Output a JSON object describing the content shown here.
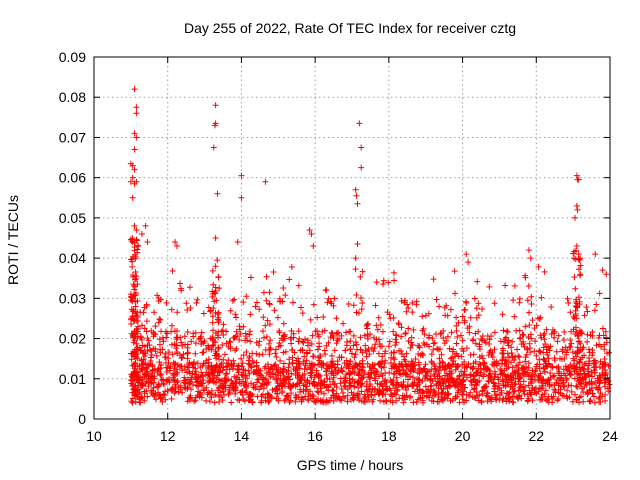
{
  "chart_data": {
    "type": "scatter",
    "title": "Day 255 of 2022, Rate Of TEC Index for receiver cztg",
    "xlabel": "GPS time / hours",
    "ylabel": "ROTI / TECUs",
    "xlim": [
      10,
      24
    ],
    "ylim": [
      0,
      0.09
    ],
    "xticks": [
      10,
      12,
      14,
      16,
      18,
      20,
      22,
      24
    ],
    "yticks": [
      0,
      0.01,
      0.02,
      0.03,
      0.04,
      0.05,
      0.06,
      0.07,
      0.08,
      0.09
    ],
    "xtick_labels": [
      "10",
      "12",
      "14",
      "16",
      "18",
      "20",
      "22",
      "24"
    ],
    "ytick_labels": [
      "0",
      "0.01",
      "0.02",
      "0.03",
      "0.04",
      "0.05",
      "0.06",
      "0.07",
      "0.08",
      "0.09"
    ],
    "grid": true,
    "marker": "+",
    "color": "#ff0000",
    "description_of_bulk": "Dense band of points spanning x=11.0 to 24.0 with ROTI mostly between 0.004 and 0.03",
    "series": [
      {
        "name": "ROTI",
        "points": [
          [
            11.1,
            0.082
          ],
          [
            11.15,
            0.0775
          ],
          [
            11.15,
            0.076
          ],
          [
            11.1,
            0.071
          ],
          [
            11.15,
            0.07
          ],
          [
            11.1,
            0.067
          ],
          [
            11.0,
            0.0635
          ],
          [
            11.05,
            0.063
          ],
          [
            11.1,
            0.062
          ],
          [
            11.05,
            0.06
          ],
          [
            11.0,
            0.059
          ],
          [
            11.1,
            0.0585
          ],
          [
            11.15,
            0.059
          ],
          [
            11.05,
            0.055
          ],
          [
            11.1,
            0.048
          ],
          [
            11.15,
            0.047
          ],
          [
            11.4,
            0.048
          ],
          [
            11.3,
            0.046
          ],
          [
            11.05,
            0.044
          ],
          [
            11.2,
            0.043
          ],
          [
            11.45,
            0.044
          ],
          [
            12.2,
            0.044
          ],
          [
            12.25,
            0.043
          ],
          [
            13.3,
            0.078
          ],
          [
            13.3,
            0.0735
          ],
          [
            13.28,
            0.073
          ],
          [
            13.25,
            0.0675
          ],
          [
            13.35,
            0.056
          ],
          [
            13.3,
            0.045
          ],
          [
            13.9,
            0.044
          ],
          [
            14.0,
            0.0605
          ],
          [
            14.0,
            0.055
          ],
          [
            14.65,
            0.059
          ],
          [
            15.85,
            0.047
          ],
          [
            15.9,
            0.046
          ],
          [
            15.95,
            0.043
          ],
          [
            17.2,
            0.0735
          ],
          [
            17.25,
            0.0675
          ],
          [
            17.25,
            0.0625
          ],
          [
            17.1,
            0.057
          ],
          [
            17.12,
            0.0555
          ],
          [
            17.15,
            0.0535
          ],
          [
            17.15,
            0.0435
          ],
          [
            17.1,
            0.04
          ],
          [
            20.1,
            0.041
          ],
          [
            20.15,
            0.039
          ],
          [
            21.8,
            0.042
          ],
          [
            21.85,
            0.04
          ],
          [
            23.1,
            0.0605
          ],
          [
            23.12,
            0.0595
          ],
          [
            23.15,
            0.0595
          ],
          [
            23.1,
            0.053
          ],
          [
            23.12,
            0.052
          ],
          [
            23.05,
            0.05
          ],
          [
            23.1,
            0.043
          ],
          [
            23.15,
            0.041
          ],
          [
            23.6,
            0.041
          ],
          [
            23.8,
            0.037
          ],
          [
            23.9,
            0.036
          ]
        ]
      }
    ]
  }
}
